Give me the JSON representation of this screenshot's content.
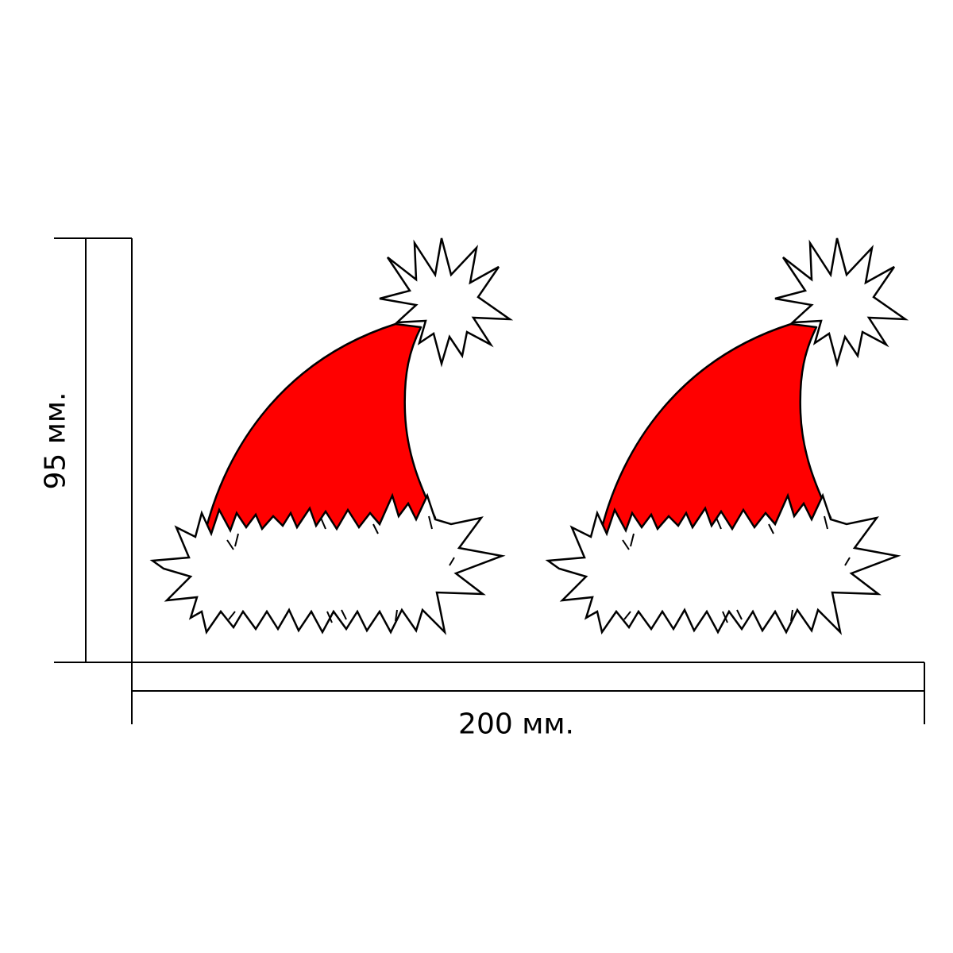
{
  "dimensions": {
    "width_label": "200 мм.",
    "height_label": "95 мм."
  },
  "colors": {
    "hat_red": "#ff0000",
    "outline": "#000000",
    "fur": "#ffffff"
  },
  "hats": [
    {
      "name": "hat-left"
    },
    {
      "name": "hat-right"
    }
  ]
}
